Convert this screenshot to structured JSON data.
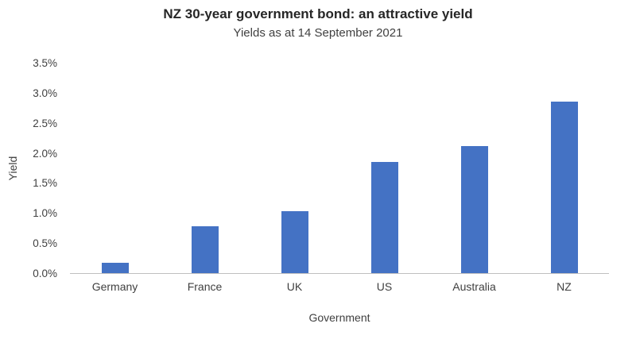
{
  "chart_data": {
    "type": "bar",
    "title": "NZ 30-year government bond: an attractive yield",
    "subtitle": "Yields as at 14 September 2021",
    "xlabel": "Government",
    "ylabel": "Yield",
    "categories": [
      "Germany",
      "France",
      "UK",
      "US",
      "Australia",
      "NZ"
    ],
    "values": [
      0.17,
      0.78,
      1.03,
      1.85,
      2.12,
      2.86
    ],
    "ylim": [
      0,
      3.5
    ],
    "ytick_step": 0.5,
    "ytick_labels": [
      "0.0%",
      "0.5%",
      "1.0%",
      "1.5%",
      "2.0%",
      "2.5%",
      "3.0%",
      "3.5%"
    ],
    "bar_color": "#4472C4",
    "grid": false,
    "legend_position": "none"
  }
}
